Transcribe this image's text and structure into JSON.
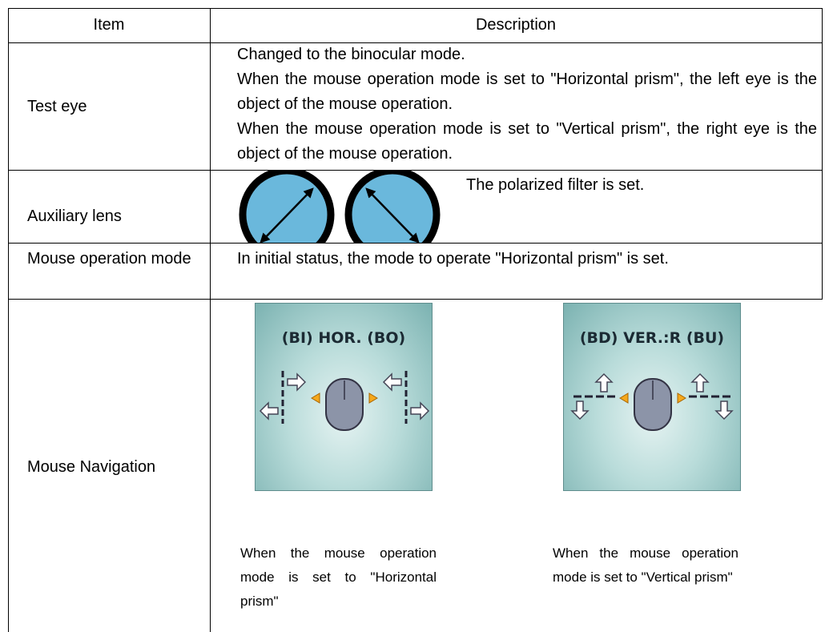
{
  "table": {
    "header": [
      "Item",
      "Description"
    ],
    "rows": [
      {
        "item": "Test eye",
        "description": [
          "Changed to the binocular mode.",
          "When the mouse operation mode is set to \"Horizontal prism\", the left eye is the object of the mouse operation.",
          "When the mouse operation mode is set to \"Vertical prism\", the right eye is the object of the mouse operation."
        ]
      },
      {
        "item": "Auxiliary lens",
        "description": [
          "The polarized filter is set."
        ]
      },
      {
        "item": "Mouse operation mode",
        "description": [
          "In initial status, the mode to operate \"Horizontal prism\" is set."
        ]
      },
      {
        "item": "Mouse Navigation",
        "panels": [
          {
            "label": "(BI) HOR. (BO)",
            "caption": "When the mouse operation mode is set to \"Horizontal prism\""
          },
          {
            "label": "(BD) VER.:R (BU)",
            "caption": "When the mouse operation mode is set to \"Vertical prism\""
          }
        ]
      }
    ]
  }
}
